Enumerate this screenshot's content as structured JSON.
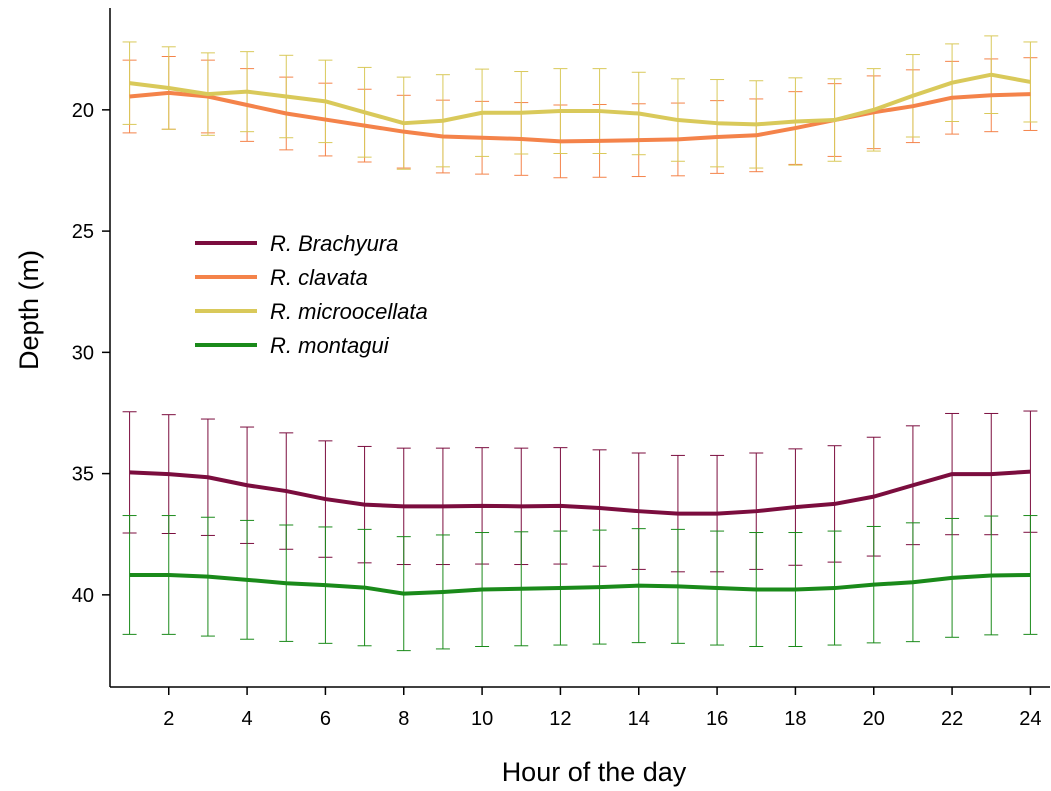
{
  "chart_data": {
    "type": "line",
    "title": "",
    "xlabel": "Hour of the day",
    "ylabel": "Depth (m)",
    "xlim": [
      0.5,
      24.5
    ],
    "ylim": [
      15.8,
      43.8
    ],
    "y_inverted": true,
    "grid": false,
    "legend_position": "center-left",
    "xticks": [
      2,
      4,
      6,
      8,
      10,
      12,
      14,
      16,
      18,
      20,
      22,
      24
    ],
    "xtick_labels": [
      "2",
      "4",
      "6",
      "8",
      "10",
      "12",
      "14",
      "16",
      "18",
      "20",
      "22",
      "24"
    ],
    "yticks": [
      20,
      25,
      30,
      35,
      40
    ],
    "ytick_labels": [
      "20",
      "25",
      "30",
      "35",
      "40"
    ],
    "x": [
      1,
      2,
      3,
      4,
      5,
      6,
      7,
      8,
      9,
      10,
      11,
      12,
      13,
      14,
      15,
      16,
      17,
      18,
      19,
      20,
      21,
      22,
      23,
      24
    ],
    "series": [
      {
        "name": "R. Brachyura",
        "color": "#7b0d3e",
        "values": [
          34.95,
          35.02,
          35.15,
          35.48,
          35.72,
          36.05,
          36.28,
          36.35,
          36.35,
          36.33,
          36.35,
          36.33,
          36.42,
          36.55,
          36.65,
          36.65,
          36.55,
          36.38,
          36.25,
          35.95,
          35.48,
          35.02,
          35.02,
          34.92
        ],
        "error": [
          2.5,
          2.45,
          2.4,
          2.4,
          2.4,
          2.4,
          2.4,
          2.4,
          2.4,
          2.4,
          2.4,
          2.4,
          2.4,
          2.4,
          2.4,
          2.4,
          2.4,
          2.4,
          2.4,
          2.45,
          2.45,
          2.5,
          2.5,
          2.5
        ]
      },
      {
        "name": "R. clavata",
        "color": "#f4834a",
        "values": [
          19.45,
          19.3,
          19.45,
          19.8,
          20.15,
          20.4,
          20.65,
          20.9,
          21.1,
          21.15,
          21.2,
          21.3,
          21.28,
          21.25,
          21.22,
          21.12,
          21.05,
          20.75,
          20.42,
          20.1,
          19.85,
          19.5,
          19.4,
          19.35
        ],
        "error": [
          1.5,
          1.5,
          1.5,
          1.5,
          1.5,
          1.5,
          1.5,
          1.5,
          1.5,
          1.5,
          1.5,
          1.5,
          1.5,
          1.5,
          1.5,
          1.5,
          1.5,
          1.5,
          1.5,
          1.5,
          1.5,
          1.5,
          1.5,
          1.5
        ]
      },
      {
        "name": "R. microocellata",
        "color": "#d9c95a",
        "values": [
          18.9,
          19.1,
          19.35,
          19.25,
          19.45,
          19.65,
          20.1,
          20.55,
          20.45,
          20.12,
          20.12,
          20.05,
          20.05,
          20.15,
          20.42,
          20.55,
          20.6,
          20.48,
          20.42,
          20.0,
          19.42,
          18.88,
          18.55,
          18.85
        ],
        "error": [
          1.7,
          1.7,
          1.7,
          1.65,
          1.7,
          1.7,
          1.85,
          1.9,
          1.9,
          1.8,
          1.7,
          1.75,
          1.75,
          1.7,
          1.7,
          1.8,
          1.8,
          1.8,
          1.7,
          1.7,
          1.7,
          1.6,
          1.6,
          1.65
        ]
      },
      {
        "name": "R. montagui",
        "color": "#1a8a1a",
        "values": [
          39.18,
          39.18,
          39.25,
          39.38,
          39.52,
          39.6,
          39.7,
          39.95,
          39.88,
          39.78,
          39.75,
          39.72,
          39.68,
          39.62,
          39.65,
          39.72,
          39.78,
          39.78,
          39.72,
          39.58,
          39.48,
          39.3,
          39.2,
          39.18
        ],
        "error": [
          2.45,
          2.45,
          2.45,
          2.45,
          2.4,
          2.4,
          2.4,
          2.35,
          2.35,
          2.35,
          2.35,
          2.35,
          2.35,
          2.35,
          2.35,
          2.35,
          2.35,
          2.35,
          2.35,
          2.4,
          2.45,
          2.45,
          2.45,
          2.45
        ]
      }
    ]
  }
}
